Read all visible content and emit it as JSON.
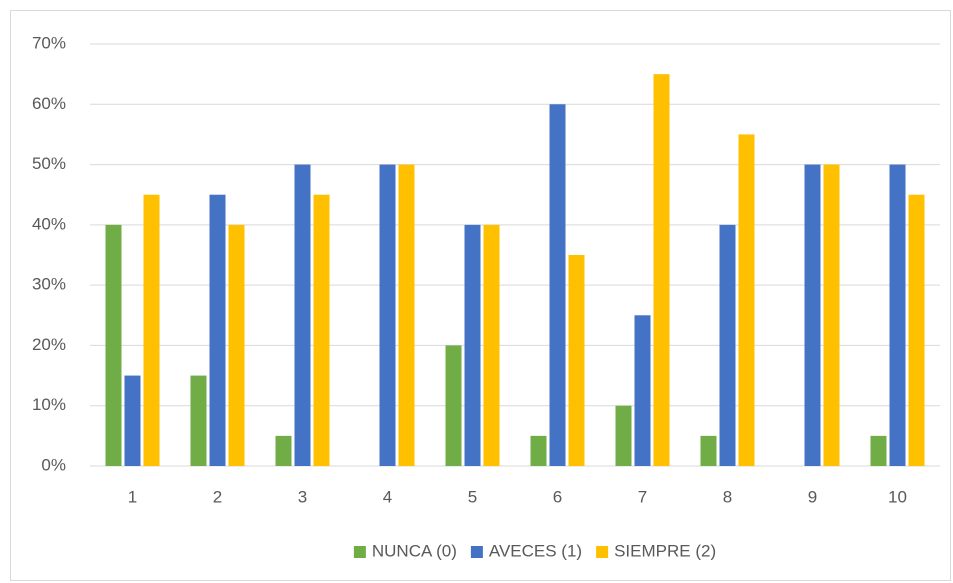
{
  "chart_data": {
    "type": "bar",
    "categories": [
      "1",
      "2",
      "3",
      "4",
      "5",
      "6",
      "7",
      "8",
      "9",
      "10"
    ],
    "series": [
      {
        "name": "NUNCA (0)",
        "color": "#70ad47",
        "values": [
          40,
          15,
          5,
          0,
          20,
          5,
          10,
          5,
          0,
          5
        ]
      },
      {
        "name": "AVECES (1)",
        "color": "#4472c4",
        "values": [
          15,
          45,
          50,
          50,
          40,
          60,
          25,
          40,
          50,
          50
        ]
      },
      {
        "name": "SIEMPRE (2)",
        "color": "#ffc000",
        "values": [
          45,
          40,
          45,
          50,
          40,
          35,
          65,
          55,
          50,
          45
        ]
      }
    ],
    "ylim": [
      0,
      70
    ],
    "yticks": [
      {
        "value": 0,
        "label": "0%"
      },
      {
        "value": 10,
        "label": "10%"
      },
      {
        "value": 20,
        "label": "20%"
      },
      {
        "value": 30,
        "label": "30%"
      },
      {
        "value": 40,
        "label": "40%"
      },
      {
        "value": 50,
        "label": "50%"
      },
      {
        "value": 60,
        "label": "60%"
      },
      {
        "value": 70,
        "label": "70%"
      }
    ],
    "grid": true,
    "legend": "bottom"
  }
}
